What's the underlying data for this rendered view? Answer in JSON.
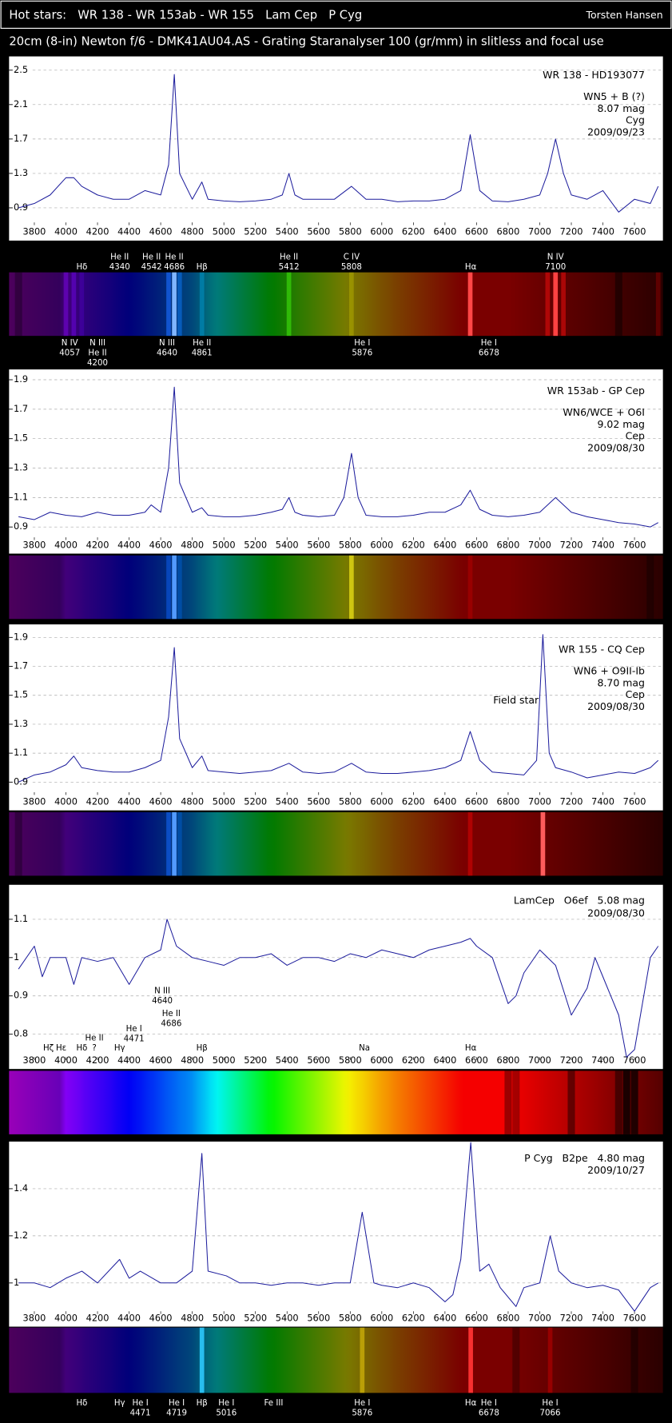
{
  "header": {
    "title": "Hot stars:   WR 138 - WR 153ab - WR 155   Lam Cep   P Cyg",
    "author": "Torsten Hansen",
    "subtitle": "20cm (8-in) Newton f/6 - DMK41AU04.AS - Grating Staranalyser 100 (gr/mm) in slitless and focal use"
  },
  "chart_data": [
    {
      "type": "line",
      "title": "WR 138 - HD193077",
      "annotation": [
        "WN5 + B (?)",
        "8.07 mag",
        "Cyg",
        "2009/09/23"
      ],
      "x": [
        3700,
        3800,
        3900,
        4000,
        4050,
        4100,
        4200,
        4300,
        4400,
        4500,
        4600,
        4650,
        4686,
        4720,
        4800,
        4861,
        4900,
        5000,
        5100,
        5200,
        5300,
        5370,
        5412,
        5450,
        5500,
        5600,
        5700,
        5808,
        5900,
        6000,
        6100,
        6200,
        6300,
        6400,
        6500,
        6560,
        6620,
        6700,
        6800,
        6900,
        7000,
        7050,
        7100,
        7150,
        7200,
        7300,
        7400,
        7500,
        7600,
        7700,
        7750
      ],
      "series": [
        {
          "color": "#1c1c9c",
          "values": [
            0.9,
            0.95,
            1.05,
            1.25,
            1.25,
            1.15,
            1.05,
            1.0,
            1.0,
            1.1,
            1.05,
            1.4,
            2.45,
            1.3,
            1.0,
            1.2,
            1.0,
            0.98,
            0.97,
            0.98,
            1.0,
            1.05,
            1.3,
            1.05,
            1.0,
            1.0,
            1.0,
            1.15,
            1.0,
            1.0,
            0.97,
            0.98,
            0.98,
            1.0,
            1.1,
            1.75,
            1.1,
            0.98,
            0.97,
            1.0,
            1.05,
            1.3,
            1.7,
            1.3,
            1.05,
            1.0,
            1.1,
            0.85,
            1.0,
            0.95,
            1.15
          ]
        }
      ],
      "xlim": [
        3640,
        7780
      ],
      "xticks": [
        3800,
        4000,
        4200,
        4400,
        4600,
        4800,
        5000,
        5200,
        5400,
        5600,
        5800,
        6000,
        6200,
        6400,
        6600,
        6800,
        7000,
        7200,
        7400,
        7600
      ],
      "ylim": [
        0.73,
        2.66
      ],
      "yticks": [
        0.9,
        1.3,
        1.7,
        2.1,
        2.5
      ],
      "grid": true,
      "labels_above": [
        {
          "text": [
            "Hδ"
          ],
          "x": 4101
        },
        {
          "text": [
            "He II",
            "4340"
          ],
          "x": 4340
        },
        {
          "text": [
            "He II",
            "4542"
          ],
          "x": 4542
        },
        {
          "text": [
            "He II",
            "4686"
          ],
          "x": 4686
        },
        {
          "text": [
            "Hβ"
          ],
          "x": 4861
        },
        {
          "text": [
            "He II",
            "5412"
          ],
          "x": 5412
        },
        {
          "text": [
            "C IV",
            "5808"
          ],
          "x": 5808
        },
        {
          "text": [
            "Hα"
          ],
          "x": 6563
        },
        {
          "text": [
            "N IV",
            "7100"
          ],
          "x": 7100
        }
      ],
      "labels_below": [
        {
          "text": [
            "N IV",
            "4057"
          ],
          "x": 4024
        },
        {
          "text": [
            "N III",
            "He II",
            "4200"
          ],
          "x": 4200
        },
        {
          "text": [
            "N III",
            "4640"
          ],
          "x": 4640
        },
        {
          "text": [
            "He II",
            "4861"
          ],
          "x": 4861
        },
        {
          "text": [
            "He I",
            "5876"
          ],
          "x": 5876
        },
        {
          "text": [
            "He I",
            "6678"
          ],
          "x": 6678
        }
      ]
    },
    {
      "type": "line",
      "title": "WR 153ab - GP Cep",
      "annotation": [
        "WN6/WCE + O6I",
        "9.02 mag",
        "Cep",
        "2009/08/30"
      ],
      "x": [
        3700,
        3800,
        3900,
        4000,
        4100,
        4200,
        4300,
        4400,
        4500,
        4540,
        4600,
        4650,
        4686,
        4720,
        4800,
        4861,
        4900,
        5000,
        5100,
        5200,
        5300,
        5370,
        5412,
        5450,
        5500,
        5600,
        5700,
        5760,
        5808,
        5850,
        5900,
        6000,
        6100,
        6200,
        6300,
        6400,
        6500,
        6560,
        6620,
        6700,
        6800,
        6900,
        7000,
        7100,
        7200,
        7300,
        7400,
        7500,
        7600,
        7700,
        7750
      ],
      "series": [
        {
          "color": "#1c1c9c",
          "values": [
            0.97,
            0.95,
            1.0,
            0.98,
            0.97,
            1.0,
            0.98,
            0.98,
            1.0,
            1.05,
            1.0,
            1.3,
            1.85,
            1.2,
            1.0,
            1.03,
            0.98,
            0.97,
            0.97,
            0.98,
            1.0,
            1.02,
            1.1,
            1.0,
            0.98,
            0.97,
            0.98,
            1.1,
            1.4,
            1.1,
            0.98,
            0.97,
            0.97,
            0.98,
            1.0,
            1.0,
            1.05,
            1.15,
            1.02,
            0.98,
            0.97,
            0.98,
            1.0,
            1.1,
            1.0,
            0.97,
            0.95,
            0.93,
            0.92,
            0.9,
            0.93
          ]
        }
      ],
      "xlim": [
        3640,
        7780
      ],
      "xticks": [
        3800,
        4000,
        4200,
        4400,
        4600,
        4800,
        5000,
        5200,
        5400,
        5600,
        5800,
        6000,
        6200,
        6400,
        6600,
        6800,
        7000,
        7200,
        7400,
        7600
      ],
      "ylim": [
        0.83,
        1.97
      ],
      "yticks": [
        0.9,
        1.1,
        1.3,
        1.5,
        1.7,
        1.9
      ],
      "grid": true
    },
    {
      "type": "line",
      "title": "WR 155 - CQ Cep",
      "annotation": [
        "WN6 + O9II-Ib",
        "8.70 mag",
        "Cep",
        "2009/08/30"
      ],
      "field_label": "Field star",
      "x": [
        3700,
        3800,
        3900,
        4000,
        4050,
        4100,
        4200,
        4300,
        4400,
        4500,
        4600,
        4650,
        4686,
        4720,
        4800,
        4861,
        4900,
        5000,
        5100,
        5200,
        5300,
        5412,
        5500,
        5600,
        5700,
        5808,
        5900,
        6000,
        6100,
        6200,
        6300,
        6400,
        6500,
        6560,
        6620,
        6700,
        6800,
        6900,
        6980,
        7020,
        7060,
        7100,
        7200,
        7300,
        7400,
        7500,
        7600,
        7700,
        7750
      ],
      "series": [
        {
          "color": "#1c1c9c",
          "values": [
            0.9,
            0.95,
            0.97,
            1.02,
            1.08,
            1.0,
            0.98,
            0.97,
            0.97,
            1.0,
            1.05,
            1.35,
            1.83,
            1.2,
            1.0,
            1.08,
            0.98,
            0.97,
            0.96,
            0.97,
            0.98,
            1.03,
            0.97,
            0.96,
            0.97,
            1.03,
            0.97,
            0.96,
            0.96,
            0.97,
            0.98,
            1.0,
            1.05,
            1.25,
            1.05,
            0.97,
            0.96,
            0.95,
            1.05,
            1.92,
            1.1,
            1.0,
            0.97,
            0.93,
            0.95,
            0.97,
            0.96,
            1.0,
            1.05
          ]
        }
      ],
      "xlim": [
        3640,
        7780
      ],
      "xticks": [
        3800,
        4000,
        4200,
        4400,
        4600,
        4800,
        5000,
        5200,
        5400,
        5600,
        5800,
        6000,
        6200,
        6400,
        6600,
        6800,
        7000,
        7200,
        7400,
        7600
      ],
      "ylim": [
        0.83,
        1.99
      ],
      "yticks": [
        0.9,
        1.1,
        1.3,
        1.5,
        1.7,
        1.9
      ],
      "grid": true
    },
    {
      "type": "line",
      "title": "LamCep   O6ef   5.08 mag",
      "annotation": [
        "2009/08/30"
      ],
      "x": [
        3700,
        3800,
        3850,
        3900,
        4000,
        4050,
        4100,
        4200,
        4300,
        4400,
        4500,
        4600,
        4640,
        4700,
        4800,
        4900,
        5000,
        5100,
        5200,
        5300,
        5400,
        5500,
        5600,
        5700,
        5800,
        5900,
        6000,
        6100,
        6200,
        6300,
        6400,
        6500,
        6560,
        6600,
        6700,
        6800,
        6850,
        6900,
        7000,
        7100,
        7200,
        7300,
        7350,
        7400,
        7500,
        7550,
        7600,
        7700,
        7750
      ],
      "series": [
        {
          "color": "#1c1c9c",
          "values": [
            0.97,
            1.03,
            0.95,
            1.0,
            1.0,
            0.93,
            1.0,
            0.99,
            1.0,
            0.93,
            1.0,
            1.02,
            1.1,
            1.03,
            1.0,
            0.99,
            0.98,
            1.0,
            1.0,
            1.01,
            0.98,
            1.0,
            1.0,
            0.99,
            1.01,
            1.0,
            1.02,
            1.01,
            1.0,
            1.02,
            1.03,
            1.04,
            1.05,
            1.03,
            1.0,
            0.88,
            0.9,
            0.96,
            1.02,
            0.98,
            0.85,
            0.92,
            1.0,
            0.95,
            0.85,
            0.74,
            0.76,
            1.0,
            1.03
          ]
        }
      ],
      "xlim": [
        3640,
        7780
      ],
      "xticks": [
        3800,
        4000,
        4200,
        4400,
        4600,
        4800,
        5000,
        5200,
        5400,
        5600,
        5800,
        6000,
        6200,
        6400,
        6600,
        6800,
        7000,
        7200,
        7400,
        7600
      ],
      "ylim": [
        0.74,
        1.19
      ],
      "yticks": [
        0.8,
        0.9,
        1,
        1.1
      ],
      "grid": true,
      "labels_in_plot": [
        {
          "text": [
            "Hζ"
          ],
          "x": 3889
        },
        {
          "text": [
            "Hε"
          ],
          "x": 3970
        },
        {
          "text": [
            "Hδ"
          ],
          "x": 4101
        },
        {
          "text": [
            "Hγ"
          ],
          "x": 4340
        },
        {
          "text": [
            "Hβ"
          ],
          "x": 4861
        },
        {
          "text": [
            "Na"
          ],
          "x": 5890
        },
        {
          "text": [
            "Hα"
          ],
          "x": 6563
        },
        {
          "text": [
            "He II",
            "?"
          ],
          "x": 4180
        },
        {
          "text": [
            "He I",
            "4471"
          ],
          "x": 4431
        },
        {
          "text": [
            "N III",
            "4640"
          ],
          "x": 4610
        },
        {
          "text": [
            "He II",
            "4686"
          ],
          "x": 4667
        }
      ]
    },
    {
      "type": "line",
      "title": "P Cyg   B2pe   4.80 mag",
      "annotation": [
        "2009/10/27"
      ],
      "x": [
        3700,
        3800,
        3900,
        4000,
        4101,
        4200,
        4340,
        4400,
        4471,
        4600,
        4700,
        4800,
        4861,
        4900,
        5016,
        5100,
        5200,
        5300,
        5400,
        5500,
        5600,
        5700,
        5800,
        5876,
        5950,
        6000,
        6100,
        6200,
        6300,
        6400,
        6450,
        6500,
        6563,
        6620,
        6678,
        6750,
        6850,
        6900,
        7000,
        7066,
        7120,
        7200,
        7300,
        7400,
        7500,
        7600,
        7700,
        7750
      ],
      "series": [
        {
          "color": "#1c1c9c",
          "values": [
            1.0,
            1.0,
            0.98,
            1.02,
            1.05,
            1.0,
            1.1,
            1.02,
            1.05,
            1.0,
            1.0,
            1.05,
            1.55,
            1.05,
            1.03,
            1.0,
            1.0,
            0.99,
            1.0,
            1.0,
            0.99,
            1.0,
            1.0,
            1.3,
            1.0,
            0.99,
            0.98,
            1.0,
            0.98,
            0.92,
            0.95,
            1.1,
            1.596,
            1.05,
            1.08,
            0.98,
            0.9,
            0.98,
            1.0,
            1.2,
            1.05,
            1.0,
            0.98,
            0.99,
            0.97,
            0.88,
            0.98,
            1.0
          ]
        }
      ],
      "xlim": [
        3640,
        7780
      ],
      "xticks": [
        3800,
        4000,
        4200,
        4400,
        4600,
        4800,
        5000,
        5200,
        5400,
        5600,
        5800,
        6000,
        6200,
        6400,
        6600,
        6800,
        7000,
        7200,
        7400,
        7600
      ],
      "ylim": [
        0.88,
        1.6
      ],
      "yticks": [
        1,
        1.2,
        1.4
      ],
      "grid": true,
      "labels_below": [
        {
          "text": [
            "Hδ"
          ],
          "x": 4101
        },
        {
          "text": [
            "Hγ"
          ],
          "x": 4340
        },
        {
          "text": [
            "He I",
            "4471"
          ],
          "x": 4471
        },
        {
          "text": [
            "He I",
            "4719"
          ],
          "x": 4701
        },
        {
          "text": [
            "Hβ"
          ],
          "x": 4861
        },
        {
          "text": [
            "He I",
            "5016"
          ],
          "x": 5016
        },
        {
          "text": [
            "Fe III"
          ],
          "x": 5315
        },
        {
          "text": [
            "He I",
            "5876"
          ],
          "x": 5876
        },
        {
          "text": [
            "Hα"
          ],
          "x": 6563
        },
        {
          "text": [
            "He I",
            "6678"
          ],
          "x": 6678
        },
        {
          "text": [
            "He I",
            "7066"
          ],
          "x": 7066
        }
      ]
    }
  ]
}
